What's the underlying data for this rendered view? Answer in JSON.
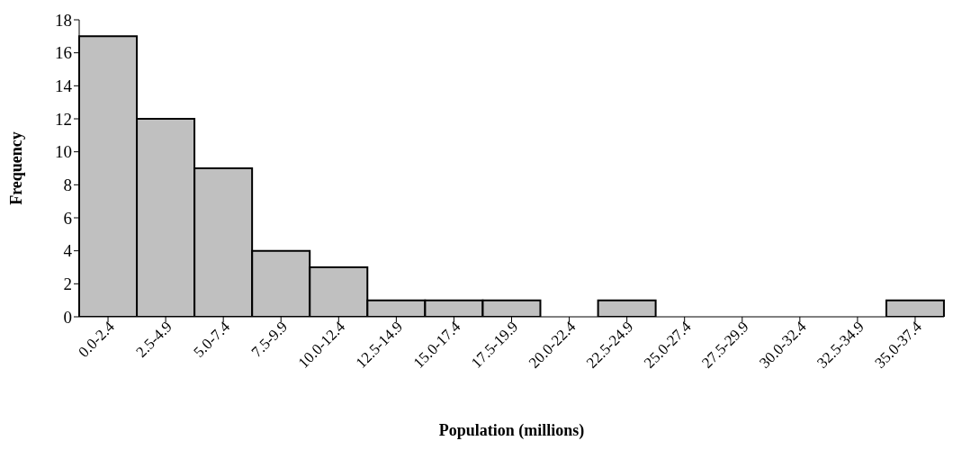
{
  "chart_data": {
    "type": "bar",
    "xlabel": "Population (millions)",
    "ylabel": "Frequency",
    "categories": [
      "0.0-2.4",
      "2.5-4.9",
      "5.0-7.4",
      "7.5-9.9",
      "10.0-12.4",
      "12.5-14.9",
      "15.0-17.4",
      "17.5-19.9",
      "20.0-22.4",
      "22.5-24.9",
      "25.0-27.4",
      "27.5-29.9",
      "30.0-32.4",
      "32.5-34.9",
      "35.0-37.4"
    ],
    "values": [
      17,
      12,
      9,
      4,
      3,
      1,
      1,
      1,
      0,
      1,
      0,
      0,
      0,
      0,
      1
    ],
    "color": "#c0c0c0",
    "ylim": [
      0,
      18
    ],
    "yticks": [
      0,
      2,
      4,
      6,
      8,
      10,
      12,
      14,
      16,
      18
    ]
  }
}
